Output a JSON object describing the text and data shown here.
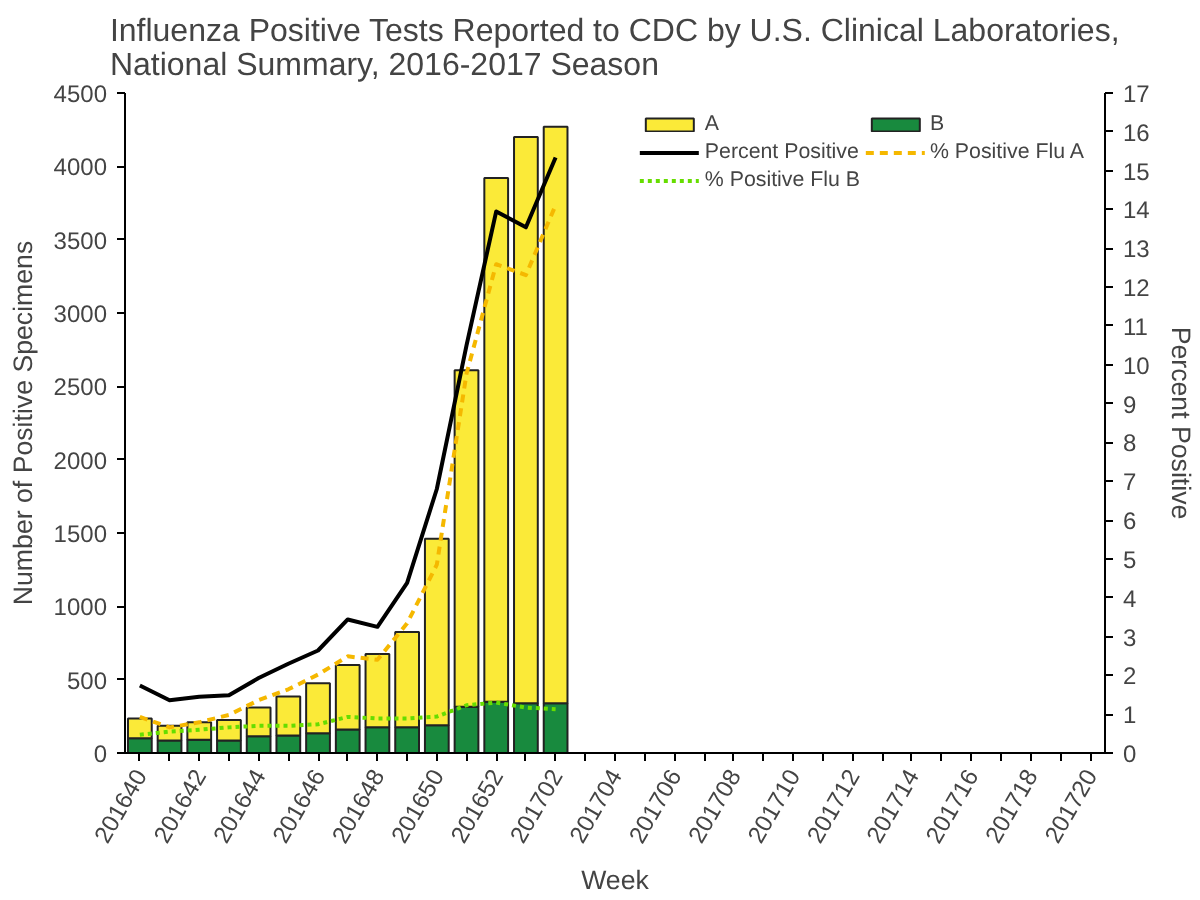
{
  "chart_data": {
    "type": "bar",
    "stacked": true,
    "title": "Influenza Positive Tests Reported to CDC by U.S. Clinical Laboratories,\nNational Summary, 2016-2017 Season",
    "xlabel": "Week",
    "ylabel": "Number of Positive Specimens",
    "y2label": "Percent Positive",
    "categories": [
      "201640",
      null,
      "201642",
      null,
      "201644",
      null,
      "201646",
      null,
      "201648",
      null,
      "201650",
      null,
      "201652",
      null,
      "201702",
      null,
      "201704",
      null,
      "201706",
      null,
      "201708",
      null,
      "201710",
      null,
      "201712",
      null,
      "201714",
      null,
      "201716",
      null,
      "201718",
      null,
      "201720"
    ],
    "ylim": [
      0,
      4500
    ],
    "yticks": [
      0,
      500,
      1000,
      1500,
      2000,
      2500,
      3000,
      3500,
      4000,
      4500
    ],
    "y2lim": [
      0,
      17
    ],
    "y2ticks": [
      0,
      1,
      2,
      3,
      4,
      5,
      6,
      7,
      8,
      9,
      10,
      11,
      12,
      13,
      14,
      15,
      16,
      17
    ],
    "legend": "top right",
    "series": [
      {
        "name": "B",
        "color": "#188a3e",
        "values": [
          100,
          85,
          90,
          85,
          115,
          120,
          135,
          160,
          175,
          175,
          190,
          315,
          350,
          340,
          340,
          null,
          null,
          null,
          null,
          null,
          null,
          null,
          null,
          null,
          null,
          null,
          null,
          null,
          null,
          null,
          null,
          null,
          null
        ]
      },
      {
        "name": "A",
        "color": "#fbea38",
        "values": [
          135,
          100,
          120,
          140,
          195,
          265,
          340,
          440,
          500,
          650,
          1270,
          2295,
          3570,
          3860,
          3930,
          null,
          null,
          null,
          null,
          null,
          null,
          null,
          null,
          null,
          null,
          null,
          null,
          null,
          null,
          null,
          null,
          null,
          null
        ]
      },
      {
        "name": "Percent Positive",
        "type": "line",
        "axis": "y2",
        "line_style": "solid",
        "color": "#000000",
        "values": [
          1.74,
          1.36,
          1.45,
          1.49,
          1.93,
          2.3,
          2.64,
          3.44,
          3.25,
          4.38,
          6.8,
          10.5,
          13.95,
          13.54,
          15.34,
          null,
          null,
          null,
          null,
          null,
          null,
          null,
          null,
          null,
          null,
          null,
          null,
          null,
          null,
          null,
          null,
          null,
          null
        ]
      },
      {
        "name": "% Positive Flu A",
        "type": "line",
        "axis": "y2",
        "line_style": "dashed",
        "color": "#f5b800",
        "values": [
          0.93,
          0.66,
          0.79,
          0.98,
          1.36,
          1.64,
          2.02,
          2.49,
          2.4,
          3.34,
          4.85,
          9.77,
          12.59,
          12.31,
          14.11,
          null,
          null,
          null,
          null,
          null,
          null,
          null,
          null,
          null,
          null,
          null,
          null,
          null,
          null,
          null,
          null,
          null,
          null
        ]
      },
      {
        "name": "% Positive Flu B",
        "type": "line",
        "axis": "y2",
        "line_style": "dotted",
        "color": "#66dd00",
        "values": [
          0.47,
          0.55,
          0.6,
          0.66,
          0.7,
          0.7,
          0.74,
          0.93,
          0.89,
          0.89,
          0.94,
          1.23,
          1.3,
          1.17,
          1.13,
          null,
          null,
          null,
          null,
          null,
          null,
          null,
          null,
          null,
          null,
          null,
          null,
          null,
          null,
          null,
          null,
          null,
          null
        ]
      }
    ]
  }
}
